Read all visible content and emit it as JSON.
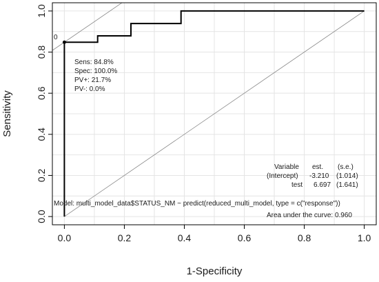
{
  "chart_data": {
    "type": "line",
    "title": "",
    "xlabel": "1-Specificity",
    "ylabel": "Sensitivity",
    "xlim": [
      -0.04,
      1.04
    ],
    "ylim": [
      -0.04,
      1.04
    ],
    "grid": true,
    "x_ticks": [
      0.0,
      0.2,
      0.4,
      0.6,
      0.8,
      1.0
    ],
    "x_tick_labels": [
      "0.0",
      "0.2",
      "0.4",
      "0.6",
      "0.8",
      "1.0"
    ],
    "y_ticks": [
      0.0,
      0.2,
      0.4,
      0.6,
      0.8,
      1.0
    ],
    "y_tick_labels": [
      "0.0",
      "0.2",
      "0.4",
      "0.6",
      "0.8",
      "1.0"
    ],
    "series": [
      {
        "x": [
          0.0,
          0.0,
          0.0,
          0.111,
          0.111,
          0.222,
          0.222,
          0.389,
          0.389,
          1.0
        ],
        "y": [
          0.0,
          0.848,
          0.848,
          0.848,
          0.879,
          0.879,
          0.939,
          0.939,
          1.0,
          1.0
        ]
      }
    ],
    "reference_line": {
      "x": [
        0.0,
        1.0
      ],
      "y": [
        0.0,
        1.0
      ]
    },
    "optimal_point": {
      "x": 0.0,
      "y": 0.848,
      "label": "0",
      "tangent_slope": 1,
      "lines": [
        "Sens: 84.8%",
        "Spec: 100.0%",
        "PV+: 21.7%",
        "PV-: 0.0%"
      ]
    },
    "coefficient_table": {
      "headers": [
        "Variable",
        "est.",
        "(s.e.)"
      ],
      "rows": [
        [
          "(Intercept)",
          "-3.210",
          "(1.014)"
        ],
        [
          "test",
          "6.697",
          "(1.641)"
        ]
      ]
    },
    "model_text": "Model:  multi_model_data$STATUS_NM ~ predict(reduced_multi_model, type = c(\"response\"))",
    "auc_text": "Area under the curve: 0.960"
  }
}
